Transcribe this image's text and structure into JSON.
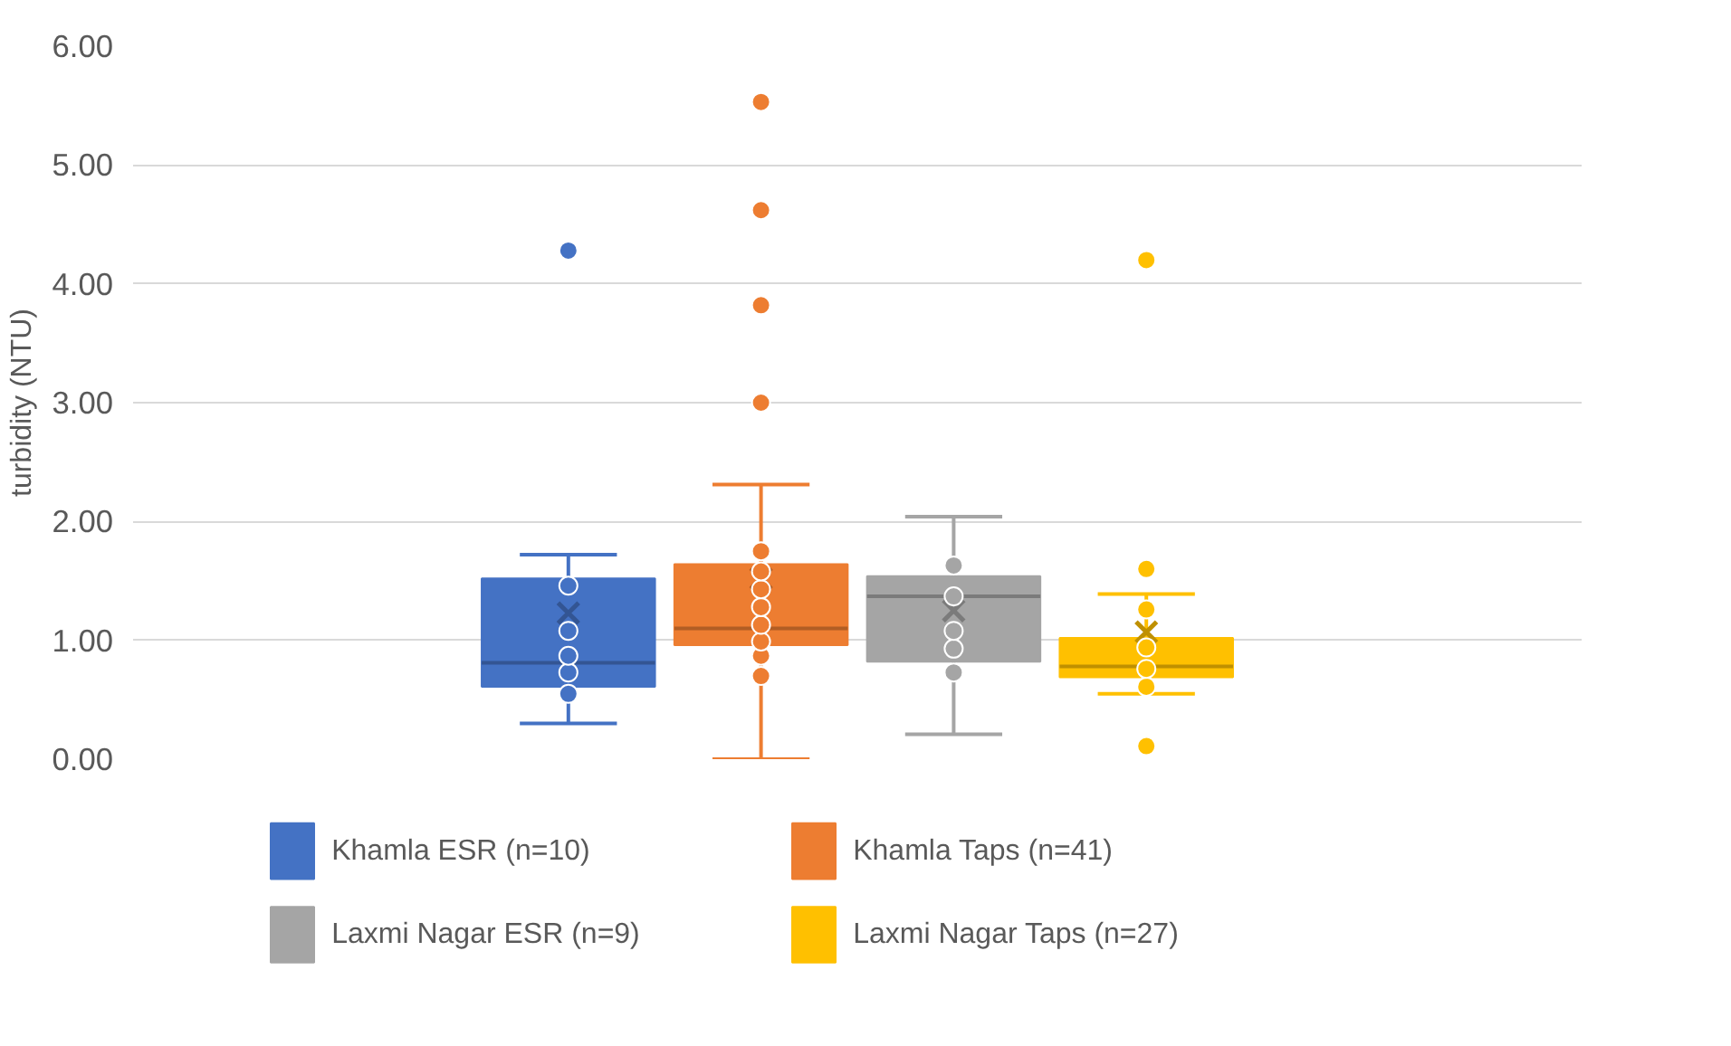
{
  "chart_data": {
    "type": "box",
    "ylabel": "turbidity (NTU)",
    "categories": [
      null
    ],
    "ylim": [
      0,
      6
    ],
    "yticks": [
      {
        "value": 0,
        "label": "0.00"
      },
      {
        "value": 1,
        "label": "1.00"
      },
      {
        "value": 2,
        "label": "2.00"
      },
      {
        "value": 3,
        "label": "3.00"
      },
      {
        "value": 4,
        "label": "4.00"
      },
      {
        "value": 5,
        "label": "5.00"
      },
      {
        "value": 6,
        "label": "6.00"
      }
    ],
    "grid": "y",
    "legend": "bottom",
    "tick_labels": "y",
    "marker": "circle",
    "series": [
      {
        "name": "Khamla ESR (n=10)",
        "color": "#4472c4",
        "boxes": [
          {
            "low": 0.3,
            "q1": 0.61,
            "median": 0.81,
            "q3": 1.52,
            "high": 1.72,
            "mean": 1.23,
            "outliers": [
              0.55,
              0.73,
              0.87,
              1.08,
              1.46,
              4.28
            ]
          }
        ]
      },
      {
        "name": "Khamla Taps (n=41)",
        "color": "#ed7d31",
        "boxes": [
          {
            "low": 0.0,
            "q1": 0.96,
            "median": 1.1,
            "q3": 1.64,
            "high": 2.31,
            "mean": 1.52,
            "outliers": [
              0.7,
              0.87,
              0.99,
              1.13,
              1.28,
              1.43,
              1.58,
              1.75,
              3.0,
              3.82,
              4.62,
              5.53
            ]
          }
        ]
      },
      {
        "name": "Laxmi Nagar ESR (n=9)",
        "color": "#a5a5a5",
        "boxes": [
          {
            "low": 0.21,
            "q1": 0.82,
            "median": 1.37,
            "q3": 1.54,
            "high": 2.04,
            "mean": 1.25,
            "outliers": [
              0.73,
              0.93,
              1.08,
              1.37,
              1.63
            ]
          }
        ]
      },
      {
        "name": "Laxmi Nagar Taps (n=27)",
        "color": "#ffc000",
        "boxes": [
          {
            "low": 0.55,
            "q1": 0.69,
            "median": 0.78,
            "q3": 1.02,
            "high": 1.39,
            "mean": 1.07,
            "outliers": [
              0.11,
              0.61,
              0.76,
              0.94,
              1.26,
              1.6,
              4.2
            ]
          }
        ]
      }
    ]
  }
}
